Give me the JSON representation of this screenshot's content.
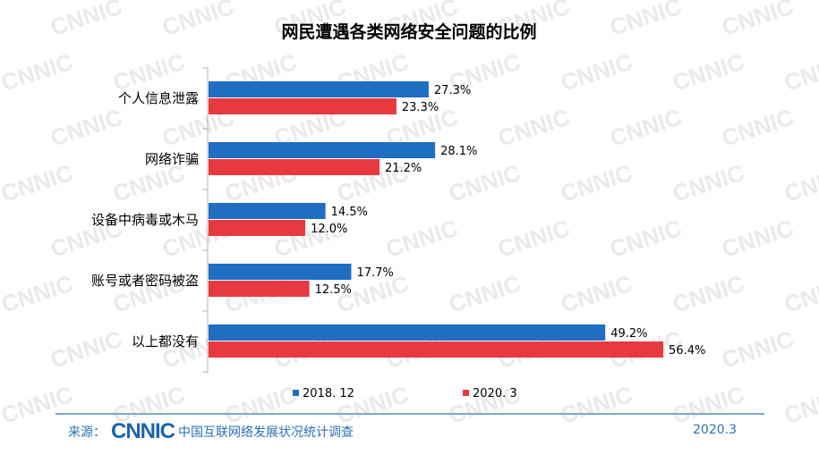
{
  "watermark_text": "CNNIC",
  "chart_data": {
    "type": "bar",
    "orientation": "horizontal",
    "title": "网民遭遇各类网络安全问题的比例",
    "categories": [
      "个人信息泄露",
      "网络诈骗",
      "设备中病毒或木马",
      "账号或者密码被盗",
      "以上都没有"
    ],
    "series": [
      {
        "name": "2018. 12",
        "color": "#1f6ec2",
        "values": [
          27.3,
          28.1,
          14.5,
          17.7,
          49.2
        ],
        "labels": [
          "27.3%",
          "28.1%",
          "14.5%",
          "17.7%",
          "49.2%"
        ]
      },
      {
        "name": "2020. 3",
        "color": "#e8393f",
        "values": [
          23.3,
          21.2,
          12.0,
          12.5,
          56.4
        ],
        "labels": [
          "23.3%",
          "21.2%",
          "12.0%",
          "12.5%",
          "56.4%"
        ]
      }
    ],
    "xlim": [
      0,
      60
    ],
    "grid": false,
    "legend": "bottom"
  },
  "footer": {
    "source_label": "来源：",
    "logo_text": "CNNIC",
    "organization": "中国互联网络发展状况统计调查",
    "date": "2020.3"
  }
}
